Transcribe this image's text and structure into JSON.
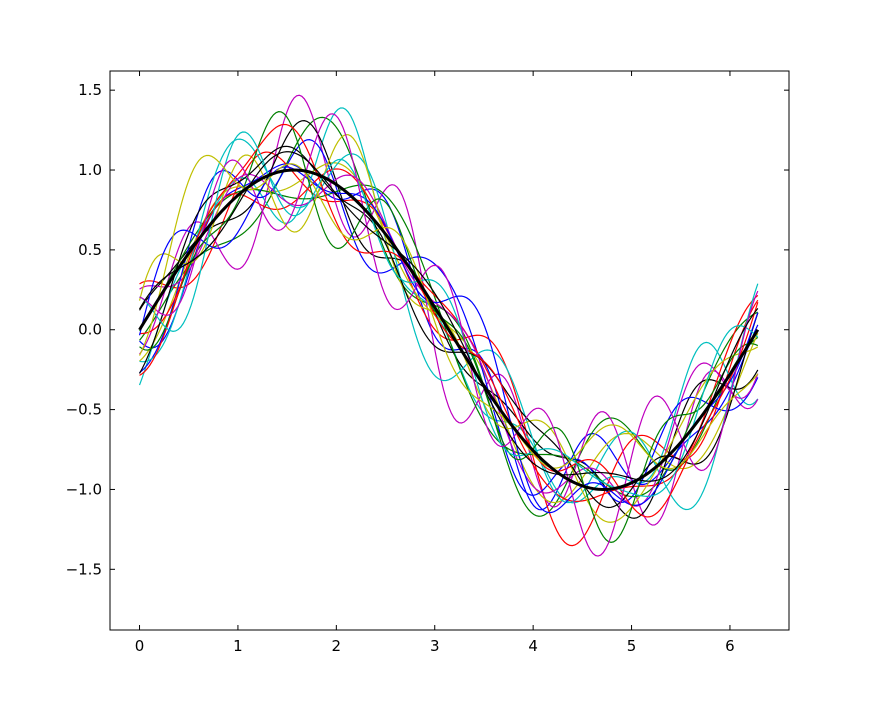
{
  "chart_data": {
    "type": "line",
    "title": "",
    "xlabel": "",
    "ylabel": "",
    "xlim": [
      -0.3,
      6.6
    ],
    "ylim": [
      -1.88,
      1.62
    ],
    "grid": false,
    "legend": "none",
    "x_ticks": [
      "0",
      "1",
      "2",
      "3",
      "4",
      "5",
      "6"
    ],
    "y_ticks": [
      "1.5",
      "1.0",
      "0.5",
      "0.0",
      "−0.5",
      "−1.0",
      "−1.5"
    ],
    "x_tick_values": [
      0,
      1,
      2,
      3,
      4,
      5,
      6
    ],
    "y_tick_values": [
      1.5,
      1.0,
      0.5,
      0.0,
      -0.5,
      -1.0,
      -1.5
    ],
    "reference_series": {
      "function": "sin(x)",
      "x_range": [
        0,
        6.283
      ],
      "color": "#000000"
    },
    "noisy_series": {
      "count": 21,
      "colors": [
        "#0000ff",
        "#008000",
        "#ff0000",
        "#00bfbf",
        "#bf00bf",
        "#bfbf00",
        "#000000"
      ],
      "amplitude_range": [
        0.1,
        0.45
      ],
      "x_range": [
        0,
        6.283
      ]
    }
  }
}
